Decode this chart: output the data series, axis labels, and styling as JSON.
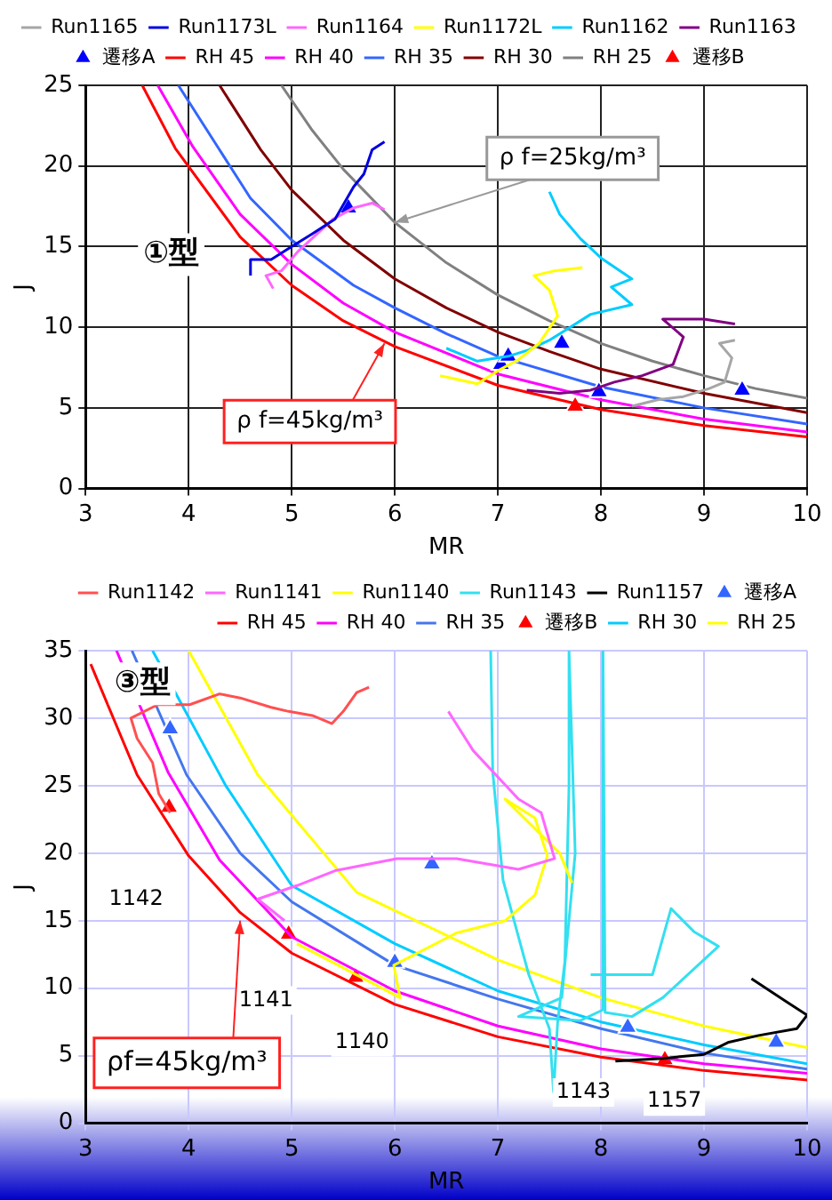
{
  "chart_data": [
    {
      "type": "line",
      "xlabel": "MR",
      "ylabel": "J",
      "xlim": [
        3,
        10
      ],
      "ylim": [
        0,
        25
      ],
      "xticks": [
        3,
        4,
        5,
        6,
        7,
        8,
        9,
        10
      ],
      "yticks": [
        0,
        5,
        10,
        15,
        20,
        25
      ],
      "grid": true,
      "legend": "top",
      "marker": "none",
      "annotations": [
        "①型",
        {
          "text": "ρ f=25kg/m³",
          "x": 6,
          "y": 16.5
        },
        {
          "text": "ρ f=45kg/m³",
          "x": 5.9,
          "y": 9.0
        }
      ],
      "series": [
        {
          "name": "Run1165",
          "color": "#a6a6a6",
          "x": [
            8.3,
            8.55,
            8.8,
            9.05,
            9.2,
            9.27,
            9.15,
            9.3
          ],
          "values": [
            5.1,
            5.5,
            5.7,
            6.2,
            6.6,
            8.1,
            9.0,
            9.2
          ]
        },
        {
          "name": "Run1173L",
          "color": "#0000dd",
          "x": [
            4.6,
            4.6,
            4.8,
            4.95,
            5.2,
            5.42,
            5.6,
            5.7,
            5.78,
            5.9
          ],
          "values": [
            13.2,
            14.2,
            14.2,
            14.8,
            15.8,
            16.7,
            18.7,
            19.5,
            21,
            21.5
          ]
        },
        {
          "name": "Run1164",
          "color": "#ff66ff",
          "x": [
            4.82,
            4.75,
            4.9,
            5.06,
            5.18,
            5.4,
            5.6,
            5.78,
            5.9
          ],
          "values": [
            12.4,
            13.2,
            13.5,
            14.7,
            15.4,
            16.7,
            17.4,
            17.7,
            17.3
          ]
        },
        {
          "name": "Run1172L",
          "color": "#ffff00",
          "x": [
            6.44,
            6.8,
            7.0,
            7.2,
            7.4,
            7.58,
            7.5,
            7.35,
            7.55,
            7.82
          ],
          "values": [
            7.0,
            6.5,
            7.3,
            8.0,
            9.0,
            10.7,
            12.3,
            13.2,
            13.5,
            13.7
          ]
        },
        {
          "name": "Run1162",
          "color": "#00ccff",
          "x": [
            6.5,
            6.8,
            7.1,
            7.3,
            7.5,
            7.7,
            7.9,
            8.3,
            8.1,
            8.3,
            8.0,
            7.8,
            7.6,
            7.5
          ],
          "values": [
            8.7,
            7.9,
            8.2,
            8.6,
            9.2,
            10,
            10.8,
            11.4,
            12.5,
            13,
            14.3,
            15.5,
            17,
            18.4
          ]
        },
        {
          "name": "Run1163",
          "color": "#800080",
          "x": [
            7.28,
            7.6,
            7.9,
            8.13,
            8.4,
            8.7,
            8.8,
            8.6,
            9.0,
            9.3
          ],
          "values": [
            6.1,
            5.9,
            6.1,
            6.6,
            7.0,
            7.7,
            9.4,
            10.5,
            10.5,
            10.2
          ]
        },
        {
          "name": "遷移A",
          "type": "scatter",
          "marker": "triangle",
          "color": "#0000ff",
          "x": [
            5.55,
            7.03,
            7.1,
            7.62,
            7.98,
            9.37
          ],
          "values": [
            17.4,
            7.7,
            8.2,
            9.0,
            6.0,
            6.1
          ]
        },
        {
          "name": "RH 45",
          "color": "#ff0000",
          "x": [
            3.55,
            3.87,
            4.5,
            5,
            5.5,
            6,
            7,
            8,
            9,
            10
          ],
          "values": [
            25,
            21.1,
            15.6,
            12.6,
            10.4,
            8.8,
            6.4,
            4.9,
            3.9,
            3.2
          ]
        },
        {
          "name": "RH 40",
          "color": "#ff00ff",
          "x": [
            3.7,
            4.04,
            4.5,
            5,
            5.5,
            6,
            7,
            8,
            9,
            10
          ],
          "values": [
            25,
            21.2,
            17,
            13.9,
            11.5,
            9.7,
            7.1,
            5.5,
            4.3,
            3.5
          ]
        },
        {
          "name": "RH 35",
          "color": "#3366ff",
          "x": [
            3.9,
            4.28,
            4.6,
            5,
            5.6,
            6,
            6.5,
            7,
            8,
            9,
            10
          ],
          "values": [
            25,
            21.2,
            18,
            15.4,
            12.6,
            11.2,
            9.6,
            8.2,
            6.3,
            5.0,
            4.0
          ]
        },
        {
          "name": "RH 30",
          "color": "#800000",
          "x": [
            4.3,
            4.7,
            5,
            5.5,
            6,
            6.5,
            7,
            7.5,
            8,
            9,
            10
          ],
          "values": [
            25,
            21,
            18.5,
            15.4,
            13,
            11.2,
            9.7,
            8.5,
            7.4,
            5.9,
            4.7
          ]
        },
        {
          "name": "RH 25",
          "color": "#808080",
          "x": [
            4.9,
            5.2,
            5.5,
            6,
            6.5,
            7,
            7.5,
            8,
            8.5,
            9,
            9.5,
            10
          ],
          "values": [
            25,
            22.2,
            19.8,
            16.5,
            14,
            12,
            10.4,
            9.0,
            7.9,
            7.0,
            6.2,
            5.6
          ]
        },
        {
          "name": "遷移B",
          "type": "scatter",
          "marker": "triangle",
          "color": "#ff0000",
          "x": [
            7.75
          ],
          "values": [
            5.1
          ]
        }
      ]
    },
    {
      "type": "line",
      "xlabel": "MR",
      "ylabel": "J",
      "xlim": [
        3,
        10
      ],
      "ylim": [
        0,
        35
      ],
      "xticks": [
        3,
        4,
        5,
        6,
        7,
        8,
        9,
        10
      ],
      "yticks": [
        0,
        5,
        10,
        15,
        20,
        25,
        30,
        35
      ],
      "grid": true,
      "legend": "top right",
      "marker": "none",
      "annotations": [
        "③型",
        "1142",
        "1141",
        "1140",
        "1143",
        "1157",
        {
          "text": "ρf=45kg/m³",
          "x": 4.5,
          "y": 15.0
        }
      ],
      "series": [
        {
          "name": "Run1142",
          "color": "#ff5050",
          "x": [
            3.82,
            3.71,
            3.65,
            3.5,
            3.44,
            3.7,
            4.01,
            4.3,
            4.5,
            4.8,
            4.97,
            5.2,
            5.39,
            5.5,
            5.63,
            5.75
          ],
          "values": [
            23.0,
            24.4,
            26.7,
            28.5,
            30,
            31,
            31.0,
            31.8,
            31.5,
            30.8,
            30.5,
            30.2,
            29.6,
            30.5,
            31.9,
            32.3
          ]
        },
        {
          "name": "Run1141",
          "color": "#ff66ff",
          "x": [
            4.93,
            4.67,
            5.05,
            5.42,
            6.02,
            6.6,
            7.2,
            7.55,
            7.42,
            7.2,
            6.76,
            6.52
          ],
          "values": [
            15,
            16.6,
            17.6,
            18.7,
            19.6,
            19.6,
            18.8,
            19.6,
            23,
            24,
            27.6,
            30.5
          ]
        },
        {
          "name": "Run1140",
          "color": "#ffff00",
          "x": [
            5.05,
            5.5,
            6.05,
            5.99,
            6.6,
            7.07,
            7.36,
            7.48,
            7.36,
            7.07,
            7.6,
            7.72
          ],
          "values": [
            13.3,
            11.5,
            9.3,
            11.7,
            14.1,
            15.0,
            16.9,
            19.8,
            22.6,
            24.0,
            20,
            17.8
          ]
        },
        {
          "name": "Run1143",
          "color": "#33e0f0",
          "x": [
            6.93,
            6.95,
            7.05,
            7.3,
            7.5,
            7.54,
            7.58,
            7.65,
            7.69,
            7.69,
            7.75,
            7.62,
            7.2,
            7.8,
            8.02,
            8.02,
            8.04,
            8.3,
            8.6,
            9.14,
            8.9,
            8.68,
            8.5,
            7.9
          ],
          "values": [
            35,
            26,
            18,
            11,
            7,
            2.3,
            7.5,
            12,
            25,
            35,
            20,
            9.3,
            7.9,
            7.6,
            8.4,
            35,
            8.2,
            7.9,
            9.3,
            13.1,
            14.2,
            15.9,
            11,
            11
          ]
        },
        {
          "name": "Run1157",
          "color": "#000000",
          "x": [
            8.14,
            8.6,
            9.0,
            9.24,
            9.53,
            9.9,
            10,
            9.8,
            9.46
          ],
          "values": [
            4.6,
            4.8,
            5.1,
            6.0,
            6.5,
            7.0,
            8.0,
            9.0,
            10.7
          ]
        },
        {
          "name": "遷移A",
          "type": "scatter",
          "marker": "triangle",
          "color": "#3366ff",
          "x": [
            3.82,
            6.0,
            6.36,
            8.26,
            9.7
          ],
          "values": [
            29.2,
            11.9,
            19.2,
            7.1,
            6.0
          ]
        },
        {
          "name": "RH 45",
          "color": "#ff0000",
          "x": [
            3.05,
            3.5,
            4,
            4.5,
            5,
            6,
            7,
            8,
            9,
            10
          ],
          "values": [
            34,
            25.8,
            19.8,
            15.6,
            12.6,
            8.8,
            6.4,
            4.9,
            3.9,
            3.2
          ]
        },
        {
          "name": "RH 40",
          "color": "#ff00ff",
          "x": [
            3.3,
            3.8,
            4.3,
            5,
            6,
            7,
            8,
            9,
            10
          ],
          "values": [
            35,
            26,
            19.5,
            13.8,
            9.8,
            7.2,
            5.5,
            4.4,
            3.7
          ]
        },
        {
          "name": "RH 35",
          "color": "#4477ee",
          "x": [
            3.45,
            3.98,
            4.5,
            5,
            6,
            7,
            8,
            9,
            10
          ],
          "values": [
            35,
            25.8,
            20,
            16.4,
            11.7,
            9.2,
            7.0,
            5.2,
            4.0
          ]
        },
        {
          "name": "遷移B",
          "type": "scatter",
          "marker": "triangle",
          "color": "#ff0000",
          "x": [
            3.81,
            4.97,
            5.62,
            8.62
          ],
          "values": [
            23.4,
            14.0,
            10.8,
            4.7
          ]
        },
        {
          "name": "RH 30",
          "color": "#00ccff",
          "x": [
            3.65,
            4.36,
            5,
            6,
            7,
            8,
            9,
            10
          ],
          "values": [
            35,
            25,
            17.6,
            13.3,
            9.8,
            7.5,
            5.8,
            4.4
          ]
        },
        {
          "name": "RH 25",
          "color": "#ffff00",
          "x": [
            4.0,
            4.67,
            5.63,
            7,
            8,
            9,
            10
          ],
          "values": [
            35,
            25.8,
            17.1,
            12.1,
            9.3,
            7.2,
            5.6
          ]
        }
      ]
    }
  ]
}
